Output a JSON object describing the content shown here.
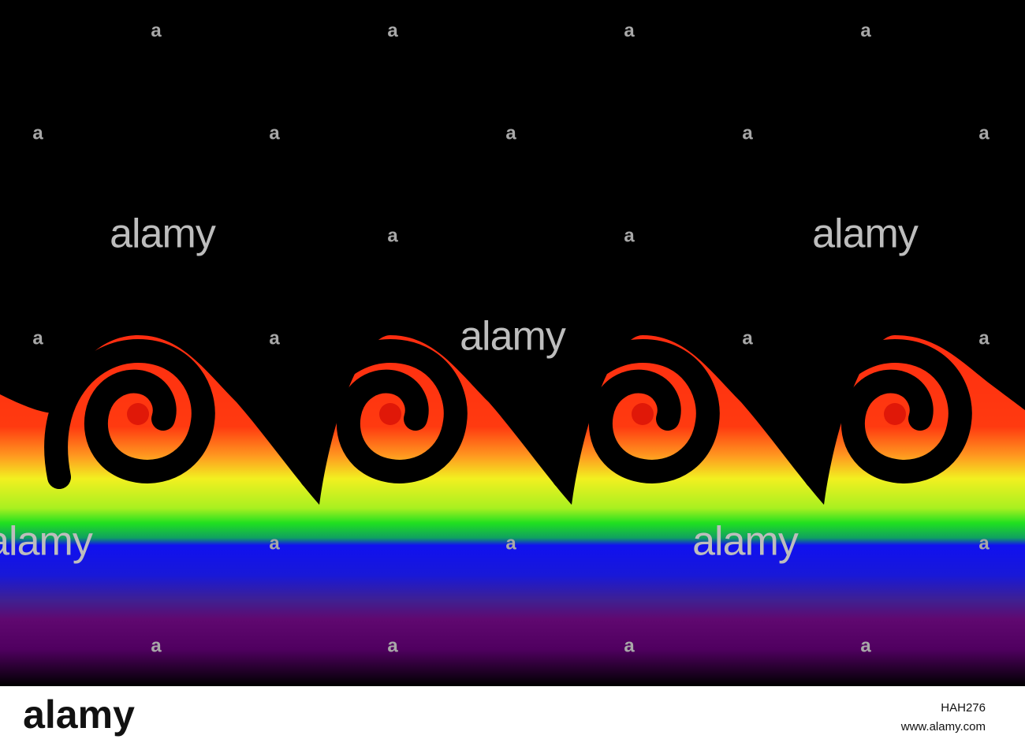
{
  "watermarks": {
    "logo": "alamy",
    "mark": "a"
  },
  "footer": {
    "logo": "alamy",
    "image_id": "HAH276",
    "url": "www.alamy.com"
  }
}
